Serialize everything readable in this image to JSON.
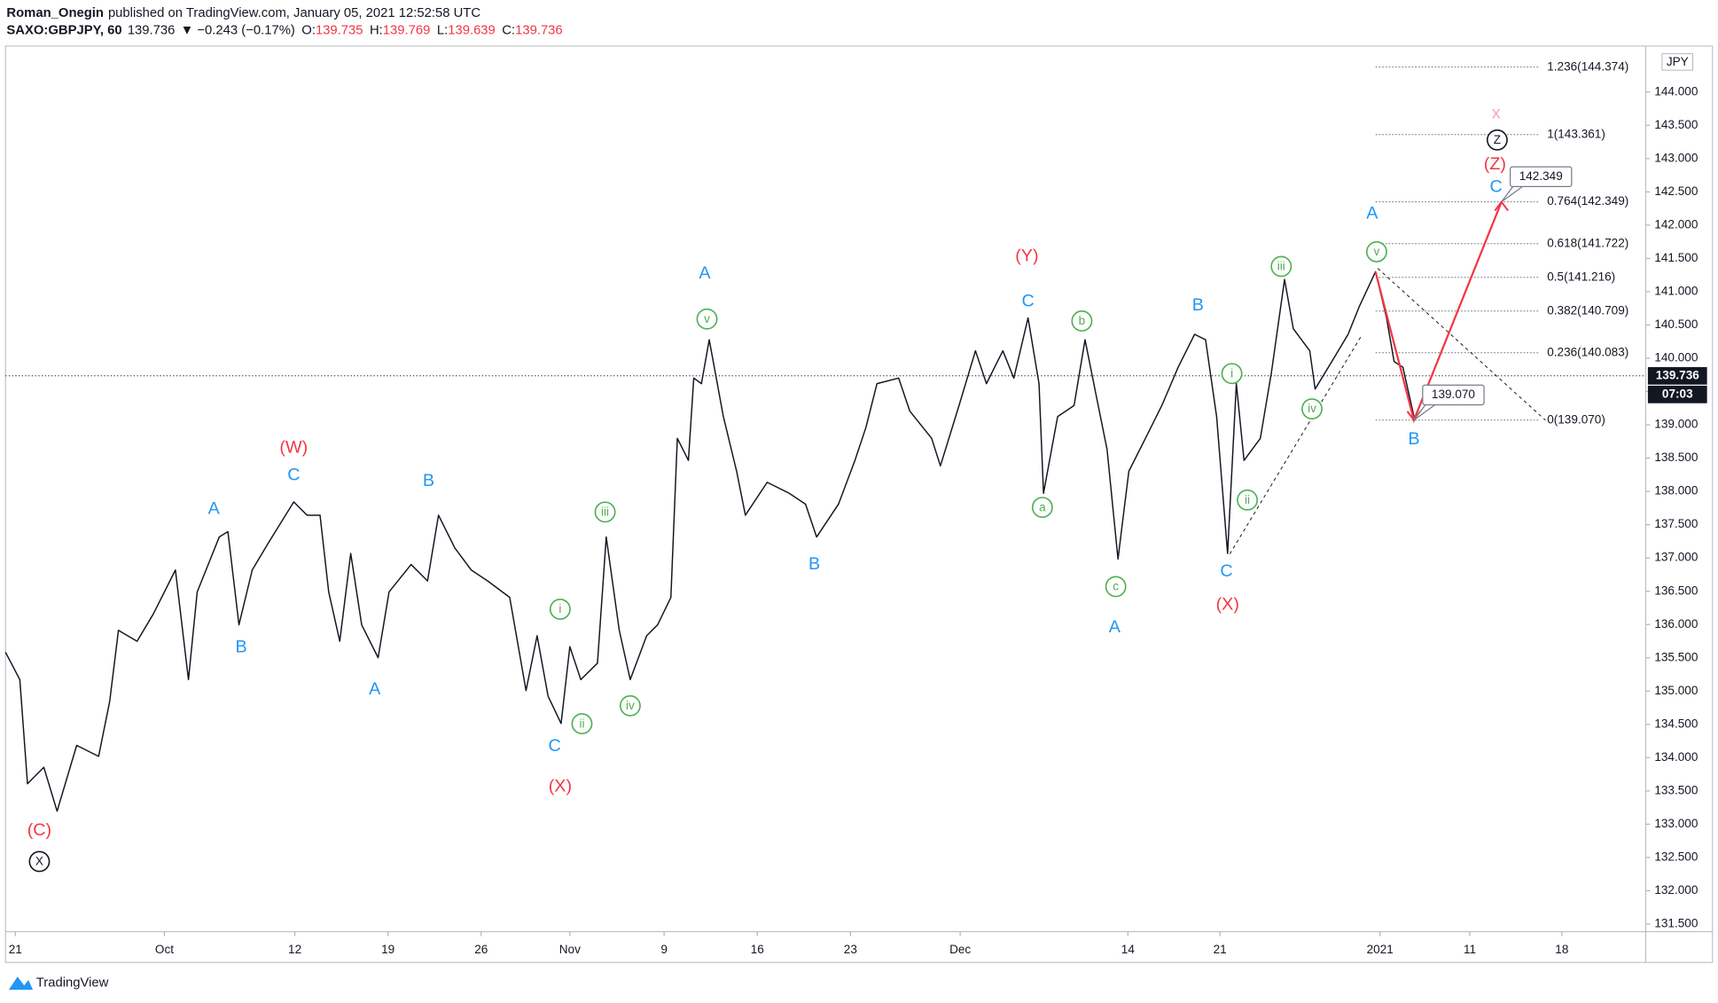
{
  "header": {
    "publisher": "Roman_Onegin",
    "published": "published on TradingView.com, January 05, 2021 12:52:58 UTC",
    "symbol": "SAXO:GBPJPY, 60",
    "last": "139.736",
    "change": "▼ −0.243 (−0.17%)",
    "ohlc": [
      {
        "key": "O:",
        "value": "139.735"
      },
      {
        "key": "H:",
        "value": "139.769"
      },
      {
        "key": "L:",
        "value": "139.639"
      },
      {
        "key": "C:",
        "value": "139.736"
      }
    ]
  },
  "chart_data": {
    "type": "line",
    "color": "#131722",
    "x": [
      -0.53,
      0.24,
      0.65,
      1.53,
      2.24,
      3.29,
      4.47,
      5.06,
      5.53,
      6.53,
      7.41,
      8.59,
      9.29,
      9.76,
      10.94,
      11.41,
      12.0,
      12.71,
      13.59,
      14.94,
      15.65,
      16.35,
      16.82,
      17.41,
      18.0,
      18.59,
      19.47,
      20.06,
      21.24,
      22.12,
      22.71,
      23.59,
      24.47,
      25.35,
      26.53,
      27.41,
      28.0,
      28.59,
      29.29,
      29.76,
      30.35,
      31.24,
      31.71,
      32.41,
      33.0,
      33.88,
      34.47,
      35.18,
      35.53,
      36.12,
      36.41,
      36.82,
      37.24,
      38.0,
      38.71,
      39.18,
      40.35,
      41.53,
      42.41,
      43.0,
      44.18,
      45.06,
      45.65,
      46.24,
      47.41,
      48.0,
      49.18,
      49.65,
      50.65,
      51.53,
      52.12,
      53.0,
      53.59,
      54.35,
      54.94,
      55.18,
      55.94,
      56.82,
      57.41,
      58.0,
      58.59,
      59.18,
      59.47,
      59.76,
      60.65,
      61.53,
      62.41,
      63.29,
      63.88,
      64.47,
      65.06,
      65.53,
      65.94,
      66.82,
      67.41,
      68.12,
      68.59,
      69.47,
      69.76,
      70.65,
      71.53,
      72.12,
      73.0,
      73.59,
      74.0,
      74.47,
      75.06
    ],
    "values": [
      135.584,
      135.173,
      133.608,
      133.855,
      133.196,
      134.184,
      134.02,
      134.843,
      135.914,
      135.749,
      136.161,
      136.819,
      135.173,
      136.49,
      137.314,
      137.396,
      135.996,
      136.819,
      137.231,
      137.841,
      137.643,
      137.643,
      136.49,
      135.749,
      137.067,
      135.996,
      135.502,
      136.49,
      136.902,
      136.655,
      137.643,
      137.149,
      136.819,
      136.655,
      136.408,
      135.008,
      135.831,
      134.926,
      134.514,
      135.667,
      135.173,
      135.42,
      137.314,
      135.914,
      135.173,
      135.831,
      135.996,
      136.408,
      138.796,
      138.466,
      139.702,
      139.619,
      140.278,
      139.125,
      138.302,
      137.643,
      138.137,
      137.972,
      137.808,
      137.314,
      137.808,
      138.466,
      138.96,
      139.619,
      139.702,
      139.208,
      138.796,
      138.384,
      139.29,
      140.113,
      139.619,
      140.113,
      139.702,
      140.607,
      139.619,
      137.972,
      139.125,
      139.29,
      140.278,
      139.455,
      138.631,
      136.984,
      137.643,
      138.302,
      138.796,
      139.29,
      139.866,
      140.36,
      140.278,
      139.125,
      137.067,
      139.619,
      138.466,
      138.796,
      139.784,
      141.184,
      140.443,
      140.113,
      139.537,
      139.949,
      140.36,
      140.772,
      141.299,
      140.607,
      139.949,
      139.866,
      139.125
    ],
    "xlim": [
      -0.53,
      87.5
    ],
    "ylim": [
      131.385,
      144.69
    ],
    "xticks": [
      {
        "value": 0,
        "label": "21"
      },
      {
        "value": 8,
        "label": "Oct"
      },
      {
        "value": 15,
        "label": "12"
      },
      {
        "value": 20,
        "label": "19"
      },
      {
        "value": 25,
        "label": "26"
      },
      {
        "value": 29.76,
        "label": "Nov"
      },
      {
        "value": 34.82,
        "label": "9"
      },
      {
        "value": 39.82,
        "label": "16"
      },
      {
        "value": 44.82,
        "label": "23"
      },
      {
        "value": 50.71,
        "label": "Dec"
      },
      {
        "value": 59.71,
        "label": "14"
      },
      {
        "value": 64.65,
        "label": "21"
      },
      {
        "value": 73.24,
        "label": "2021"
      },
      {
        "value": 78.06,
        "label": "11"
      },
      {
        "value": 83.0,
        "label": "18"
      }
    ],
    "yticks": [
      {
        "value": 131.5,
        "label": "131.500"
      },
      {
        "value": 132,
        "label": "132.000"
      },
      {
        "value": 132.5,
        "label": "132.500"
      },
      {
        "value": 133,
        "label": "133.000"
      },
      {
        "value": 133.5,
        "label": "133.500"
      },
      {
        "value": 134,
        "label": "134.000"
      },
      {
        "value": 134.5,
        "label": "134.500"
      },
      {
        "value": 135,
        "label": "135.000"
      },
      {
        "value": 135.5,
        "label": "135.500"
      },
      {
        "value": 136,
        "label": "136.000"
      },
      {
        "value": 136.5,
        "label": "136.500"
      },
      {
        "value": 137,
        "label": "137.000"
      },
      {
        "value": 137.5,
        "label": "137.500"
      },
      {
        "value": 138,
        "label": "138.000"
      },
      {
        "value": 138.5,
        "label": "138.500"
      },
      {
        "value": 139,
        "label": "139.000"
      },
      {
        "value": 139.5,
        "label": "139.500"
      },
      {
        "value": 140,
        "label": "140.000"
      },
      {
        "value": 140.5,
        "label": "140.500"
      },
      {
        "value": 141,
        "label": "141.000"
      },
      {
        "value": 141.5,
        "label": "141.500"
      },
      {
        "value": 142,
        "label": "142.000"
      },
      {
        "value": 142.5,
        "label": "142.500"
      },
      {
        "value": 143,
        "label": "143.000"
      },
      {
        "value": 143.5,
        "label": "143.500"
      },
      {
        "value": 144,
        "label": "144.000"
      }
    ],
    "currency": "JPY",
    "last_price": 139.736,
    "countdown": "07:03",
    "fib_levels": [
      {
        "value": 144.374,
        "label": "1.236(144.374)"
      },
      {
        "value": 143.361,
        "label": "1(143.361)"
      },
      {
        "value": 142.349,
        "label": "0.764(142.349)"
      },
      {
        "value": 141.722,
        "label": "0.618(141.722)"
      },
      {
        "value": 141.216,
        "label": "0.5(141.216)"
      },
      {
        "value": 140.709,
        "label": "0.382(140.709)"
      },
      {
        "value": 140.083,
        "label": "0.236(140.083)"
      },
      {
        "value": 139.07,
        "label": "0(139.070)"
      }
    ],
    "projection": {
      "color": "#f23645",
      "x": [
        73.0,
        75.06,
        79.76
      ],
      "values": [
        141.3,
        139.07,
        142.349
      ]
    },
    "callouts": [
      {
        "x": 79.76,
        "value": 142.349
      },
      {
        "x": 75.06,
        "value": 139.07,
        "label": "139.070"
      }
    ],
    "trendlines": [
      {
        "x": [
          65.18,
          72.29
        ],
        "values": [
          137.06,
          140.36
        ]
      },
      {
        "x": [
          73.12,
          82.12
        ],
        "values": [
          141.35,
          139.07
        ]
      }
    ],
    "annotations": [
      {
        "text": "A",
        "x": 10.65,
        "y": 137.73,
        "color": "#2196f3"
      },
      {
        "text": "B",
        "x": 12.12,
        "y": 135.65,
        "color": "#2196f3"
      },
      {
        "text": "C",
        "x": 14.94,
        "y": 138.24,
        "color": "#2196f3"
      },
      {
        "text": "A",
        "x": 19.29,
        "y": 135.02,
        "color": "#2196f3"
      },
      {
        "text": "B",
        "x": 22.18,
        "y": 138.15,
        "color": "#2196f3"
      },
      {
        "text": "C",
        "x": 28.94,
        "y": 134.17,
        "color": "#2196f3"
      },
      {
        "text": "A",
        "x": 37.0,
        "y": 141.27,
        "color": "#2196f3"
      },
      {
        "text": "B",
        "x": 42.88,
        "y": 136.9,
        "color": "#2196f3"
      },
      {
        "text": "C",
        "x": 54.35,
        "y": 140.85,
        "color": "#2196f3"
      },
      {
        "text": "B",
        "x": 63.47,
        "y": 140.79,
        "color": "#2196f3"
      },
      {
        "text": "A",
        "x": 59.0,
        "y": 135.95,
        "color": "#2196f3"
      },
      {
        "text": "C",
        "x": 65.0,
        "y": 136.79,
        "color": "#2196f3"
      },
      {
        "text": "A",
        "x": 72.82,
        "y": 142.17,
        "color": "#2196f3"
      },
      {
        "text": "B",
        "x": 75.06,
        "y": 138.78,
        "color": "#2196f3"
      },
      {
        "text": "C",
        "x": 79.47,
        "y": 142.57,
        "color": "#2196f3"
      },
      {
        "text": "(C)",
        "x": 1.29,
        "y": 132.9,
        "color": "#f23645"
      },
      {
        "text": "(W)",
        "x": 14.94,
        "y": 138.65,
        "color": "#f23645"
      },
      {
        "text": "(X)",
        "x": 29.24,
        "y": 133.56,
        "color": "#f23645"
      },
      {
        "text": "(Y)",
        "x": 54.29,
        "y": 141.53,
        "color": "#f23645"
      },
      {
        "text": "(X)",
        "x": 65.06,
        "y": 136.29,
        "color": "#f23645"
      },
      {
        "text": "(Z)",
        "x": 79.41,
        "y": 142.91,
        "color": "#f23645"
      },
      {
        "text": "x",
        "x": 79.47,
        "y": 143.67,
        "color": "#f8a5b8"
      },
      {
        "text": "iii",
        "x": 31.65,
        "y": 137.69,
        "color": "#4caf50",
        "circled": true
      },
      {
        "text": "i",
        "x": 29.24,
        "y": 136.23,
        "color": "#4caf50",
        "circled": true
      },
      {
        "text": "ii",
        "x": 30.41,
        "y": 134.51,
        "color": "#4caf50",
        "circled": true
      },
      {
        "text": "iv",
        "x": 33.0,
        "y": 134.78,
        "color": "#4caf50",
        "circled": true
      },
      {
        "text": "v",
        "x": 37.12,
        "y": 140.59,
        "color": "#4caf50",
        "circled": true
      },
      {
        "text": "a",
        "x": 55.12,
        "y": 137.76,
        "color": "#4caf50",
        "circled": true
      },
      {
        "text": "b",
        "x": 57.24,
        "y": 140.56,
        "color": "#4caf50",
        "circled": true
      },
      {
        "text": "c",
        "x": 59.06,
        "y": 136.57,
        "color": "#4caf50",
        "circled": true
      },
      {
        "text": "i",
        "x": 65.29,
        "y": 139.77,
        "color": "#4caf50",
        "circled": true
      },
      {
        "text": "ii",
        "x": 66.12,
        "y": 137.87,
        "color": "#4caf50",
        "circled": true
      },
      {
        "text": "iii",
        "x": 67.94,
        "y": 141.38,
        "color": "#4caf50",
        "circled": true
      },
      {
        "text": "iv",
        "x": 69.59,
        "y": 139.24,
        "color": "#4caf50",
        "circled": true
      },
      {
        "text": "v",
        "x": 73.06,
        "y": 141.6,
        "color": "#4caf50",
        "circled": true
      },
      {
        "text": "X",
        "x": 1.29,
        "y": 132.44,
        "color": "#131722",
        "circled": true
      },
      {
        "text": "Z",
        "x": 79.53,
        "y": 143.28,
        "color": "#131722",
        "circled": true
      }
    ]
  },
  "footer": "TradingView"
}
